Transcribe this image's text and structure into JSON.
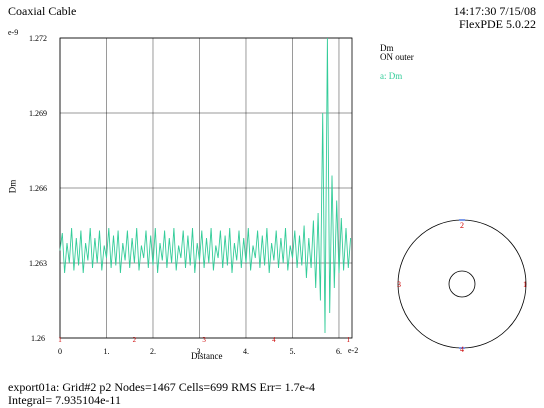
{
  "header": {
    "title": "Coaxial Cable",
    "timestamp": "14:17:30 7/15/08",
    "version": "FlexPDE 5.0.22"
  },
  "footer": {
    "line1": "export01a:  Grid#2  p2  Nodes=1467 Cells=699 RMS Err= 1.7e-4",
    "line2": "Integral=  7.935104e-11"
  },
  "chart_data": {
    "type": "line",
    "title": "Dm",
    "subtitle": "ON outer",
    "xlabel": "Distance",
    "ylabel": "Dm",
    "x_exponent": "e-2",
    "y_exponent": "e-9",
    "xlim": [
      0,
      6.28
    ],
    "ylim": [
      1.26,
      1.272
    ],
    "x_ticks": [
      "0",
      "1.",
      "2.",
      "3.",
      "4.",
      "5.",
      "6."
    ],
    "y_ticks": [
      "1.26",
      "1.263",
      "1.266",
      "1.269",
      "1.272"
    ],
    "grid": true,
    "legend": "a: Dm",
    "series": [
      {
        "name": "Dm",
        "color": "#33cc99",
        "x": [
          0.0,
          0.05,
          0.1,
          0.15,
          0.2,
          0.25,
          0.3,
          0.35,
          0.4,
          0.45,
          0.5,
          0.55,
          0.6,
          0.65,
          0.7,
          0.75,
          0.8,
          0.85,
          0.9,
          0.95,
          1.0,
          1.05,
          1.1,
          1.15,
          1.2,
          1.25,
          1.3,
          1.35,
          1.4,
          1.45,
          1.5,
          1.55,
          1.6,
          1.65,
          1.7,
          1.75,
          1.8,
          1.85,
          1.9,
          1.95,
          2.0,
          2.05,
          2.1,
          2.15,
          2.2,
          2.25,
          2.3,
          2.35,
          2.4,
          2.45,
          2.5,
          2.55,
          2.6,
          2.65,
          2.7,
          2.75,
          2.8,
          2.85,
          2.9,
          2.95,
          3.0,
          3.05,
          3.1,
          3.15,
          3.2,
          3.25,
          3.3,
          3.35,
          3.4,
          3.45,
          3.5,
          3.55,
          3.6,
          3.65,
          3.7,
          3.75,
          3.8,
          3.85,
          3.9,
          3.95,
          4.0,
          4.05,
          4.1,
          4.15,
          4.2,
          4.25,
          4.3,
          4.35,
          4.4,
          4.45,
          4.5,
          4.55,
          4.6,
          4.65,
          4.7,
          4.75,
          4.8,
          4.85,
          4.9,
          4.95,
          5.0,
          5.05,
          5.1,
          5.15,
          5.2,
          5.25,
          5.3,
          5.35,
          5.4,
          5.45,
          5.5,
          5.55,
          5.6,
          5.65,
          5.7,
          5.75,
          5.8,
          5.85,
          5.9,
          5.95,
          6.0,
          6.05,
          6.1,
          6.15,
          6.2,
          6.25
        ],
        "values": [
          1.2635,
          1.2642,
          1.2626,
          1.2638,
          1.263,
          1.2644,
          1.2627,
          1.264,
          1.2629,
          1.2643,
          1.2626,
          1.2638,
          1.2631,
          1.2644,
          1.2628,
          1.264,
          1.263,
          1.2643,
          1.2627,
          1.2637,
          1.2632,
          1.2644,
          1.2628,
          1.2641,
          1.2629,
          1.2643,
          1.2626,
          1.2638,
          1.2631,
          1.2643,
          1.2628,
          1.264,
          1.263,
          1.2644,
          1.2627,
          1.2637,
          1.2632,
          1.2643,
          1.2628,
          1.2641,
          1.2629,
          1.2644,
          1.2626,
          1.2638,
          1.2631,
          1.2643,
          1.2628,
          1.264,
          1.263,
          1.2644,
          1.2627,
          1.2637,
          1.2632,
          1.2643,
          1.2628,
          1.2641,
          1.2629,
          1.2644,
          1.2626,
          1.2638,
          1.2631,
          1.2643,
          1.2628,
          1.264,
          1.263,
          1.2644,
          1.2627,
          1.2637,
          1.2632,
          1.2643,
          1.2628,
          1.2641,
          1.2629,
          1.2644,
          1.2626,
          1.2638,
          1.2631,
          1.2643,
          1.2628,
          1.264,
          1.263,
          1.2644,
          1.2627,
          1.2637,
          1.2632,
          1.2643,
          1.2628,
          1.2641,
          1.2629,
          1.2644,
          1.2626,
          1.2638,
          1.2631,
          1.2643,
          1.2628,
          1.264,
          1.263,
          1.2644,
          1.2627,
          1.2637,
          1.2632,
          1.2643,
          1.2628,
          1.2641,
          1.2629,
          1.2645,
          1.2624,
          1.264,
          1.2628,
          1.2647,
          1.262,
          1.265,
          1.2615,
          1.269,
          1.2602,
          1.272,
          1.261,
          1.2665,
          1.262,
          1.2655,
          1.2626,
          1.2648,
          1.2627,
          1.2644,
          1.2628,
          1.264
        ]
      }
    ],
    "x_markers": [
      "1",
      "2",
      "3",
      "4",
      "1"
    ],
    "inset": {
      "type": "circle-domain",
      "markers": [
        "2",
        "3",
        "1",
        "4"
      ]
    }
  }
}
